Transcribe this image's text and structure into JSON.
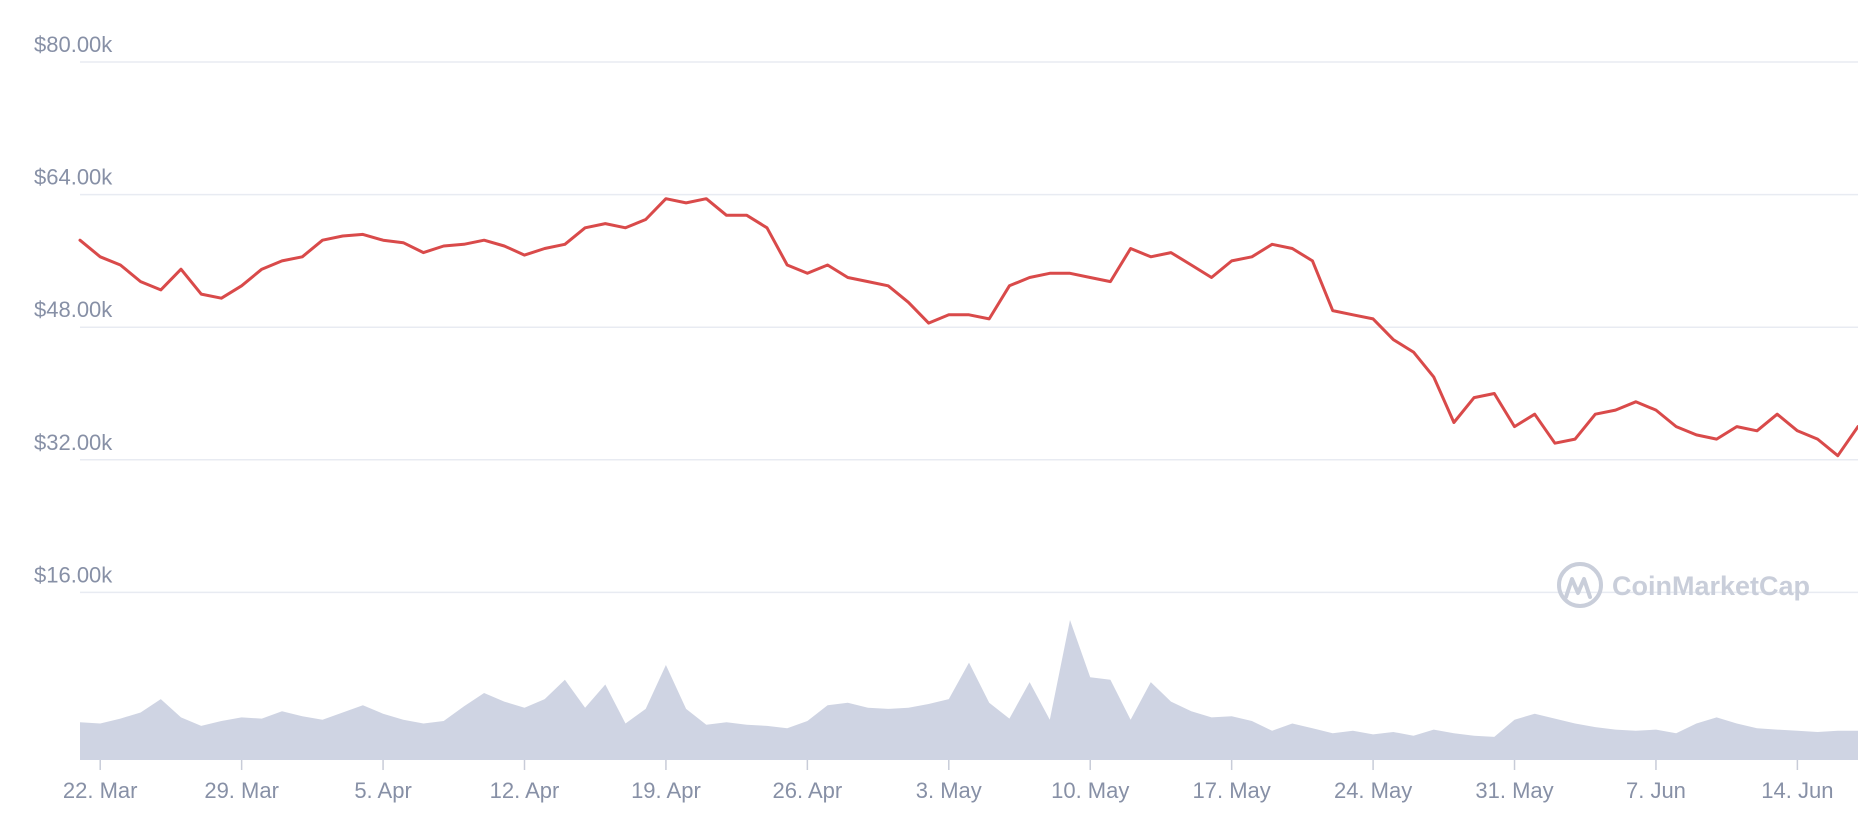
{
  "watermark": {
    "text": "CoinMarketCap",
    "icon": "coinmarketcap-logo-icon"
  },
  "colors": {
    "price_line": "#d94a4a",
    "volume_fill": "#cfd4e3",
    "grid": "#e8ebf2",
    "tick_text": "#8790a6",
    "watermark": "#c9ceda"
  },
  "chart_data": {
    "type": "line",
    "title": "",
    "xlabel": "",
    "ylabel": "",
    "x_range": [
      "2021-03-21",
      "2021-06-17"
    ],
    "ylim": [
      0,
      80000
    ],
    "grid": true,
    "y_ticks": [
      {
        "value": 16000,
        "label": "$16.00k"
      },
      {
        "value": 32000,
        "label": "$32.00k"
      },
      {
        "value": 48000,
        "label": "$48.00k"
      },
      {
        "value": 64000,
        "label": "$64.00k"
      },
      {
        "value": 80000,
        "label": "$80.00k"
      }
    ],
    "x_ticks": [
      {
        "date": "2021-03-22",
        "label": "22. Mar"
      },
      {
        "date": "2021-03-29",
        "label": "29. Mar"
      },
      {
        "date": "2021-04-05",
        "label": "5. Apr"
      },
      {
        "date": "2021-04-12",
        "label": "12. Apr"
      },
      {
        "date": "2021-04-19",
        "label": "19. Apr"
      },
      {
        "date": "2021-04-26",
        "label": "26. Apr"
      },
      {
        "date": "2021-05-03",
        "label": "3. May"
      },
      {
        "date": "2021-05-10",
        "label": "10. May"
      },
      {
        "date": "2021-05-17",
        "label": "17. May"
      },
      {
        "date": "2021-05-24",
        "label": "24. May"
      },
      {
        "date": "2021-05-31",
        "label": "31. May"
      },
      {
        "date": "2021-06-07",
        "label": "7. Jun"
      },
      {
        "date": "2021-06-14",
        "label": "14. Jun"
      }
    ],
    "series": [
      {
        "type": "line",
        "color": "#d94a4a",
        "points": [
          [
            "2021-03-21",
            58500
          ],
          [
            "2021-03-22",
            56500
          ],
          [
            "2021-03-23",
            55500
          ],
          [
            "2021-03-24",
            53500
          ],
          [
            "2021-03-25",
            52500
          ],
          [
            "2021-03-26",
            55000
          ],
          [
            "2021-03-27",
            52000
          ],
          [
            "2021-03-28",
            51500
          ],
          [
            "2021-03-29",
            53000
          ],
          [
            "2021-03-30",
            55000
          ],
          [
            "2021-03-31",
            56000
          ],
          [
            "2021-04-01",
            56500
          ],
          [
            "2021-04-02",
            58500
          ],
          [
            "2021-04-03",
            59000
          ],
          [
            "2021-04-04",
            59200
          ],
          [
            "2021-04-05",
            58500
          ],
          [
            "2021-04-06",
            58200
          ],
          [
            "2021-04-07",
            57000
          ],
          [
            "2021-04-08",
            57800
          ],
          [
            "2021-04-09",
            58000
          ],
          [
            "2021-04-10",
            58500
          ],
          [
            "2021-04-11",
            57800
          ],
          [
            "2021-04-12",
            56700
          ],
          [
            "2021-04-13",
            57500
          ],
          [
            "2021-04-14",
            58000
          ],
          [
            "2021-04-15",
            60000
          ],
          [
            "2021-04-16",
            60500
          ],
          [
            "2021-04-17",
            60000
          ],
          [
            "2021-04-18",
            61000
          ],
          [
            "2021-04-19",
            63500
          ],
          [
            "2021-04-20",
            63000
          ],
          [
            "2021-04-21",
            63500
          ],
          [
            "2021-04-22",
            61500
          ],
          [
            "2021-04-23",
            61500
          ],
          [
            "2021-04-24",
            60000
          ],
          [
            "2021-04-25",
            55500
          ],
          [
            "2021-04-26",
            54500
          ],
          [
            "2021-04-27",
            55500
          ],
          [
            "2021-04-28",
            54000
          ],
          [
            "2021-04-29",
            53500
          ],
          [
            "2021-04-30",
            53000
          ],
          [
            "2021-05-01",
            51000
          ],
          [
            "2021-05-02",
            48500
          ],
          [
            "2021-05-03",
            49500
          ],
          [
            "2021-05-04",
            49500
          ],
          [
            "2021-05-05",
            49000
          ],
          [
            "2021-05-06",
            53000
          ],
          [
            "2021-05-07",
            54000
          ],
          [
            "2021-05-08",
            54500
          ],
          [
            "2021-05-09",
            54500
          ],
          [
            "2021-05-10",
            54000
          ],
          [
            "2021-05-11",
            53500
          ],
          [
            "2021-05-12",
            57500
          ],
          [
            "2021-05-13",
            56500
          ],
          [
            "2021-05-14",
            57000
          ],
          [
            "2021-05-15",
            55500
          ],
          [
            "2021-05-16",
            54000
          ],
          [
            "2021-05-17",
            56000
          ],
          [
            "2021-05-18",
            56500
          ],
          [
            "2021-05-19",
            58000
          ],
          [
            "2021-05-20",
            57500
          ],
          [
            "2021-05-21",
            56000
          ],
          [
            "2021-05-22",
            50000
          ],
          [
            "2021-05-23",
            49500
          ],
          [
            "2021-05-24",
            49000
          ],
          [
            "2021-05-25",
            46500
          ],
          [
            "2021-05-26",
            45000
          ],
          [
            "2021-05-27",
            42000
          ],
          [
            "2021-05-28",
            36500
          ],
          [
            "2021-05-29",
            39500
          ],
          [
            "2021-05-30",
            40000
          ],
          [
            "2021-05-31",
            36000
          ],
          [
            "2021-06-01",
            37500
          ],
          [
            "2021-06-02",
            34000
          ],
          [
            "2021-06-03",
            34500
          ],
          [
            "2021-06-04",
            37500
          ],
          [
            "2021-06-05",
            38000
          ],
          [
            "2021-06-06",
            39000
          ],
          [
            "2021-06-07",
            38000
          ],
          [
            "2021-06-08",
            36000
          ],
          [
            "2021-06-09",
            35000
          ],
          [
            "2021-06-10",
            34500
          ],
          [
            "2021-06-11",
            36000
          ],
          [
            "2021-06-12",
            35500
          ],
          [
            "2021-06-13",
            37500
          ],
          [
            "2021-06-14",
            35500
          ],
          [
            "2021-06-15",
            34500
          ],
          [
            "2021-06-16",
            32500
          ],
          [
            "2021-06-17",
            36000
          ]
        ]
      },
      {
        "type": "area",
        "color": "#cfd4e3",
        "points": [
          [
            "2021-03-21",
            3100
          ],
          [
            "2021-03-22",
            3000
          ],
          [
            "2021-03-23",
            3400
          ],
          [
            "2021-03-24",
            3900
          ],
          [
            "2021-03-25",
            5000
          ],
          [
            "2021-03-26",
            3500
          ],
          [
            "2021-03-27",
            2800
          ],
          [
            "2021-03-28",
            3200
          ],
          [
            "2021-03-29",
            3500
          ],
          [
            "2021-03-30",
            3400
          ],
          [
            "2021-03-31",
            4000
          ],
          [
            "2021-04-01",
            3600
          ],
          [
            "2021-04-02",
            3300
          ],
          [
            "2021-04-03",
            3900
          ],
          [
            "2021-04-04",
            4500
          ],
          [
            "2021-04-05",
            3800
          ],
          [
            "2021-04-06",
            3300
          ],
          [
            "2021-04-07",
            3000
          ],
          [
            "2021-04-08",
            3200
          ],
          [
            "2021-04-09",
            4400
          ],
          [
            "2021-04-10",
            5500
          ],
          [
            "2021-04-11",
            4800
          ],
          [
            "2021-04-12",
            4300
          ],
          [
            "2021-04-13",
            5000
          ],
          [
            "2021-04-14",
            6600
          ],
          [
            "2021-04-15",
            4300
          ],
          [
            "2021-04-16",
            6200
          ],
          [
            "2021-04-17",
            3000
          ],
          [
            "2021-04-18",
            4200
          ],
          [
            "2021-04-19",
            7800
          ],
          [
            "2021-04-20",
            4200
          ],
          [
            "2021-04-21",
            2900
          ],
          [
            "2021-04-22",
            3100
          ],
          [
            "2021-04-23",
            2900
          ],
          [
            "2021-04-24",
            2800
          ],
          [
            "2021-04-25",
            2600
          ],
          [
            "2021-04-26",
            3200
          ],
          [
            "2021-04-27",
            4500
          ],
          [
            "2021-04-28",
            4700
          ],
          [
            "2021-04-29",
            4300
          ],
          [
            "2021-04-30",
            4200
          ],
          [
            "2021-05-01",
            4300
          ],
          [
            "2021-05-02",
            4600
          ],
          [
            "2021-05-03",
            5000
          ],
          [
            "2021-05-04",
            8000
          ],
          [
            "2021-05-05",
            4700
          ],
          [
            "2021-05-06",
            3400
          ],
          [
            "2021-05-07",
            6400
          ],
          [
            "2021-05-08",
            3300
          ],
          [
            "2021-05-09",
            11500
          ],
          [
            "2021-05-10",
            6800
          ],
          [
            "2021-05-11",
            6600
          ],
          [
            "2021-05-12",
            3300
          ],
          [
            "2021-05-13",
            6400
          ],
          [
            "2021-05-14",
            4800
          ],
          [
            "2021-05-15",
            4000
          ],
          [
            "2021-05-16",
            3500
          ],
          [
            "2021-05-17",
            3600
          ],
          [
            "2021-05-18",
            3200
          ],
          [
            "2021-05-19",
            2400
          ],
          [
            "2021-05-20",
            3000
          ],
          [
            "2021-05-21",
            2600
          ],
          [
            "2021-05-22",
            2200
          ],
          [
            "2021-05-23",
            2400
          ],
          [
            "2021-05-24",
            2100
          ],
          [
            "2021-05-25",
            2300
          ],
          [
            "2021-05-26",
            2000
          ],
          [
            "2021-05-27",
            2500
          ],
          [
            "2021-05-28",
            2200
          ],
          [
            "2021-05-29",
            2000
          ],
          [
            "2021-05-30",
            1900
          ],
          [
            "2021-05-31",
            3300
          ],
          [
            "2021-06-01",
            3800
          ],
          [
            "2021-06-02",
            3400
          ],
          [
            "2021-06-03",
            3000
          ],
          [
            "2021-06-04",
            2700
          ],
          [
            "2021-06-05",
            2500
          ],
          [
            "2021-06-06",
            2400
          ],
          [
            "2021-06-07",
            2500
          ],
          [
            "2021-06-08",
            2200
          ],
          [
            "2021-06-09",
            3000
          ],
          [
            "2021-06-10",
            3500
          ],
          [
            "2021-06-11",
            3000
          ],
          [
            "2021-06-12",
            2600
          ],
          [
            "2021-06-13",
            2500
          ],
          [
            "2021-06-14",
            2400
          ],
          [
            "2021-06-15",
            2300
          ],
          [
            "2021-06-16",
            2400
          ],
          [
            "2021-06-17",
            2400
          ]
        ]
      }
    ]
  }
}
